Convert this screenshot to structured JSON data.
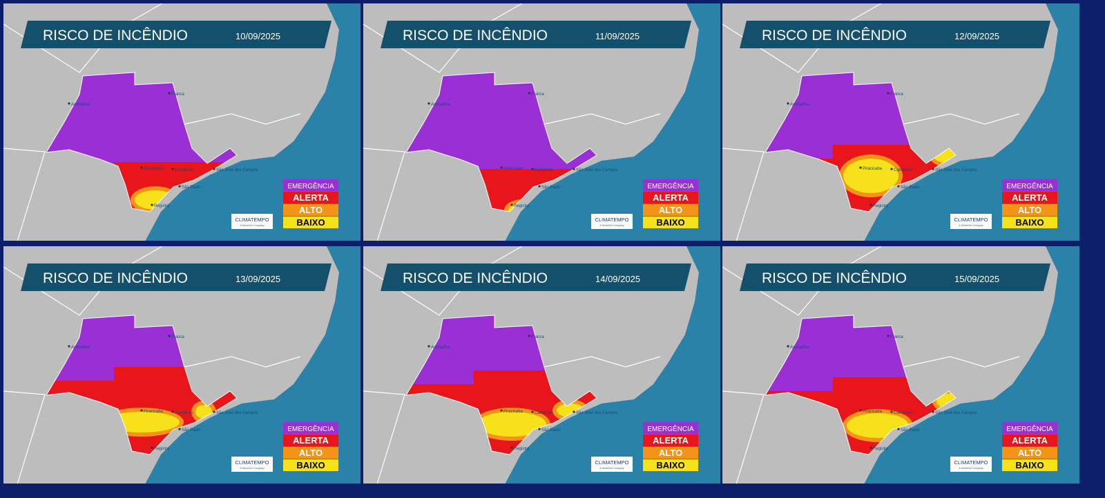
{
  "panels": [
    {
      "title": "RISCO DE INCÊNDIO",
      "date": "10/09/2025"
    },
    {
      "title": "RISCO DE INCÊNDIO",
      "date": "11/09/2025"
    },
    {
      "title": "RISCO DE INCÊNDIO",
      "date": "12/09/2025"
    },
    {
      "title": "RISCO DE INCÊNDIO",
      "date": "13/09/2025"
    },
    {
      "title": "RISCO DE INCÊNDIO",
      "date": "14/09/2025"
    },
    {
      "title": "RISCO DE INCÊNDIO",
      "date": "15/09/2025"
    }
  ],
  "legend": [
    {
      "label": "EMERGÊNCIA",
      "color": "#9a2fd6"
    },
    {
      "label": "ALERTA",
      "color": "#e8151b"
    },
    {
      "label": "ALTO",
      "color": "#f39418"
    },
    {
      "label": "BAIXO",
      "color": "#f7e11a"
    }
  ],
  "cities": [
    "Andradina",
    "Franca",
    "Piracicaba",
    "Campinas",
    "São Paulo",
    "São José dos Campos",
    "Registro"
  ],
  "logo": {
    "name": "CLIMATEMPO",
    "tagline": "A StormGeo Company"
  }
}
